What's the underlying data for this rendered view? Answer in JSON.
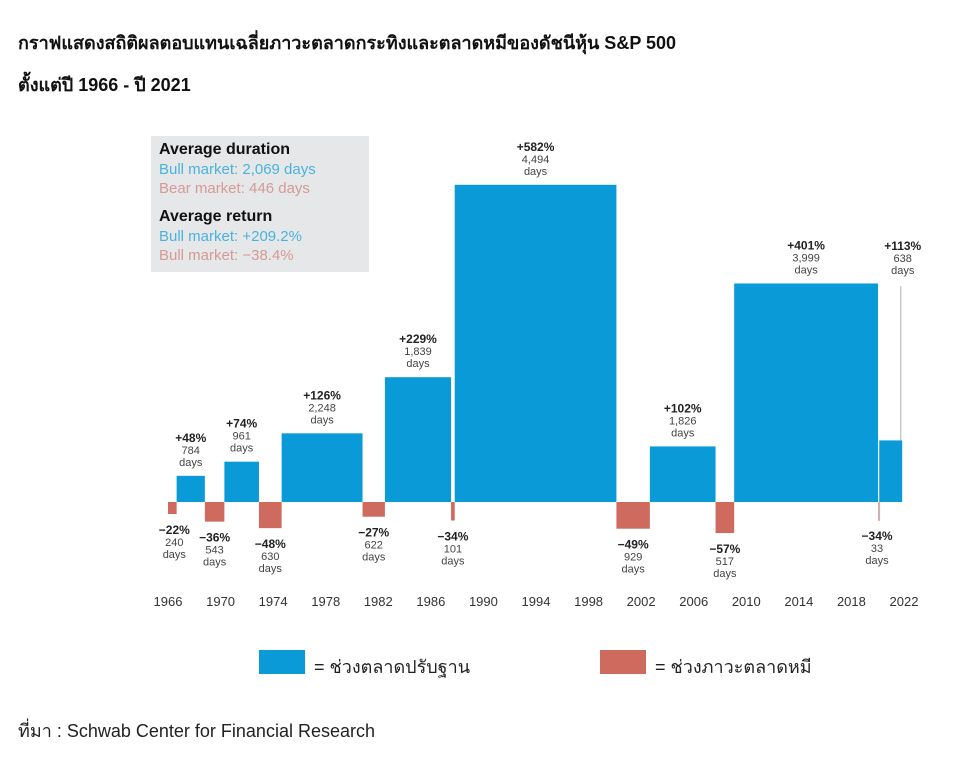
{
  "title_line1": "กราฟแสดงสถิติผลตอบแทนเฉลี่ยภาวะตลาดกระทิงและตลาดหมีของดัชนีหุ้น S&P 500",
  "title_line2": "ตั้งแต่ปี 1966 - ปี 2021",
  "infobox": {
    "duration_heading": "Average duration",
    "bull_duration": "Bull market: 2,069 days",
    "bear_duration": "Bear market: 446 days",
    "return_heading": "Average return",
    "bull_return": "Bull market: +209.2%",
    "bear_return": "Bull market: −38.4%"
  },
  "legend": {
    "bull_label": "= ช่วงตลาดปรับฐาน",
    "bear_label": "= ช่วงภาวะตลาดหมี"
  },
  "source": "ที่มา : Schwab Center for Financial Research",
  "colors": {
    "bull": "#0b9ad8",
    "bear": "#cf6a5f",
    "leader": "#c8c8c8"
  },
  "chart_data": {
    "type": "bar",
    "xlim": [
      1966,
      2022
    ],
    "x_ticks": [
      "1966",
      "1970",
      "1974",
      "1978",
      "1982",
      "1986",
      "1990",
      "1994",
      "1998",
      "2002",
      "2006",
      "2010",
      "2014",
      "2018",
      "2022"
    ],
    "segments": [
      {
        "type": "bear",
        "return": -22,
        "return_label": "−22%",
        "days": 240,
        "days_label": "240"
      },
      {
        "type": "bull",
        "return": 48,
        "return_label": "+48%",
        "days": 784,
        "days_label": "784"
      },
      {
        "type": "bear",
        "return": -36,
        "return_label": "−36%",
        "days": 543,
        "days_label": "543"
      },
      {
        "type": "bull",
        "return": 74,
        "return_label": "+74%",
        "days": 961,
        "days_label": "961"
      },
      {
        "type": "bear",
        "return": -48,
        "return_label": "−48%",
        "days": 630,
        "days_label": "630"
      },
      {
        "type": "bull",
        "return": 126,
        "return_label": "+126%",
        "days": 2248,
        "days_label": "2,248"
      },
      {
        "type": "bear",
        "return": -27,
        "return_label": "−27%",
        "days": 622,
        "days_label": "622"
      },
      {
        "type": "bull",
        "return": 229,
        "return_label": "+229%",
        "days": 1839,
        "days_label": "1,839"
      },
      {
        "type": "bear",
        "return": -34,
        "return_label": "−34%",
        "days": 101,
        "days_label": "101"
      },
      {
        "type": "bull",
        "return": 582,
        "return_label": "+582%",
        "days": 4494,
        "days_label": "4,494"
      },
      {
        "type": "bear",
        "return": -49,
        "return_label": "−49%",
        "days": 929,
        "days_label": "929"
      },
      {
        "type": "bull",
        "return": 102,
        "return_label": "+102%",
        "days": 1826,
        "days_label": "1,826"
      },
      {
        "type": "bear",
        "return": -57,
        "return_label": "−57%",
        "days": 517,
        "days_label": "517"
      },
      {
        "type": "bull",
        "return": 401,
        "return_label": "+401%",
        "days": 3999,
        "days_label": "3,999"
      },
      {
        "type": "bear",
        "return": -34,
        "return_label": "−34%",
        "days": 33,
        "days_label": "33"
      },
      {
        "type": "bull",
        "return": 113,
        "return_label": "+113%",
        "days": 638,
        "days_label": "638"
      }
    ],
    "days_unit": "days"
  }
}
